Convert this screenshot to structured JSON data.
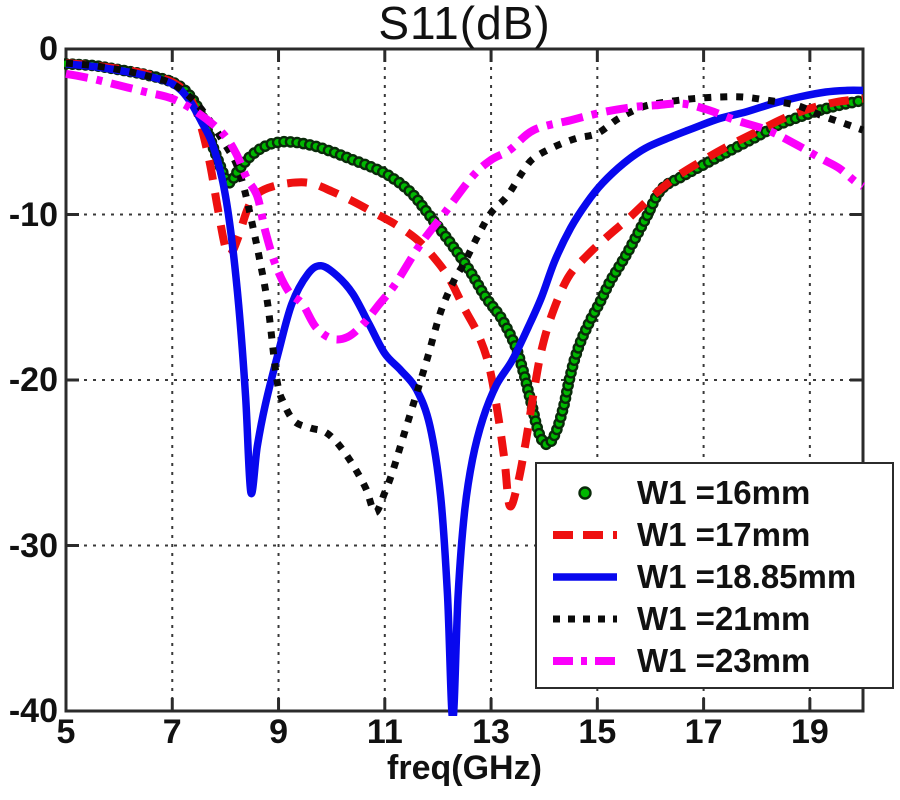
{
  "colors": {
    "background": "#ffffff",
    "frame": "#2b2b2b",
    "grid": "#3a3a3a",
    "text": "#111111"
  },
  "chart_data": {
    "type": "line",
    "title": "S11(dB)",
    "xlabel": "freq(GHz)",
    "ylabel": "",
    "xlim": [
      5,
      20
    ],
    "ylim": [
      -40,
      0
    ],
    "x_ticks": [
      5,
      7,
      9,
      11,
      13,
      15,
      17,
      19
    ],
    "x_tick_labels": [
      "5",
      "7",
      "9",
      "11",
      "13",
      "15",
      "17",
      "19"
    ],
    "y_ticks": [
      0,
      -10,
      -20,
      -30,
      -40
    ],
    "y_tick_labels": [
      "0",
      "-10",
      "-20",
      "-30",
      "-40"
    ],
    "grid": "dashed",
    "legend": {
      "position": "lower-right",
      "border": true
    },
    "series": [
      {
        "label": "W1 =16mm",
        "color": "#00b800",
        "marker_edge": "#0a2a0a",
        "style": "circle-markers",
        "points": [
          [
            5,
            -0.9
          ],
          [
            5.5,
            -1.0
          ],
          [
            6,
            -1.25
          ],
          [
            6.5,
            -1.55
          ],
          [
            7,
            -2.0
          ],
          [
            7.3,
            -2.7
          ],
          [
            7.55,
            -4.0
          ],
          [
            7.8,
            -6.2
          ],
          [
            8.0,
            -7.8
          ],
          [
            8.1,
            -8.05
          ],
          [
            8.25,
            -7.3
          ],
          [
            8.5,
            -6.4
          ],
          [
            8.8,
            -5.8
          ],
          [
            9.15,
            -5.6
          ],
          [
            9.6,
            -5.8
          ],
          [
            10,
            -6.2
          ],
          [
            10.4,
            -6.7
          ],
          [
            10.8,
            -7.2
          ],
          [
            11.1,
            -7.7
          ],
          [
            11.5,
            -8.7
          ],
          [
            11.9,
            -10.3
          ],
          [
            12.3,
            -12.0
          ],
          [
            12.6,
            -13.4
          ],
          [
            12.9,
            -15.0
          ],
          [
            13.2,
            -16.3
          ],
          [
            13.45,
            -17.9
          ],
          [
            13.6,
            -19.4
          ],
          [
            13.75,
            -21.3
          ],
          [
            13.9,
            -23.2
          ],
          [
            14.05,
            -23.9
          ],
          [
            14.2,
            -23.3
          ],
          [
            14.35,
            -21.8
          ],
          [
            14.5,
            -19.6
          ],
          [
            14.65,
            -18.0
          ],
          [
            14.85,
            -16.5
          ],
          [
            15.05,
            -15.3
          ],
          [
            15.25,
            -14.0
          ],
          [
            15.55,
            -12.4
          ],
          [
            15.9,
            -10.3
          ],
          [
            16.2,
            -8.5
          ],
          [
            16.6,
            -7.7
          ],
          [
            17,
            -7.0
          ],
          [
            17.4,
            -6.3
          ],
          [
            18,
            -5.3
          ],
          [
            18.4,
            -4.6
          ],
          [
            18.9,
            -4.0
          ],
          [
            19.3,
            -3.6
          ],
          [
            19.7,
            -3.3
          ],
          [
            20,
            -3.1
          ]
        ]
      },
      {
        "label": "W1 =17mm",
        "color": "#ee1010",
        "style": "dashed",
        "points": [
          [
            5,
            -0.85
          ],
          [
            5.5,
            -1.0
          ],
          [
            6,
            -1.2
          ],
          [
            6.5,
            -1.5
          ],
          [
            7,
            -2.0
          ],
          [
            7.3,
            -2.8
          ],
          [
            7.5,
            -4.2
          ],
          [
            7.7,
            -6.8
          ],
          [
            7.85,
            -9.5
          ],
          [
            8.0,
            -12.0
          ],
          [
            8.1,
            -12.4
          ],
          [
            8.25,
            -11.3
          ],
          [
            8.4,
            -9.8
          ],
          [
            8.55,
            -8.9
          ],
          [
            8.8,
            -8.4
          ],
          [
            9.2,
            -8.1
          ],
          [
            9.6,
            -8.1
          ],
          [
            10,
            -8.6
          ],
          [
            10.4,
            -9.2
          ],
          [
            10.8,
            -9.9
          ],
          [
            11.2,
            -10.6
          ],
          [
            11.6,
            -11.5
          ],
          [
            11.9,
            -12.5
          ],
          [
            12.2,
            -13.8
          ],
          [
            12.5,
            -15.7
          ],
          [
            12.75,
            -17.2
          ],
          [
            12.95,
            -19.0
          ],
          [
            13.1,
            -21.5
          ],
          [
            13.25,
            -24.8
          ],
          [
            13.35,
            -27.6
          ],
          [
            13.5,
            -26.3
          ],
          [
            13.65,
            -23.8
          ],
          [
            13.8,
            -20.8
          ],
          [
            13.95,
            -18.2
          ],
          [
            14.15,
            -16.0
          ],
          [
            14.45,
            -13.8
          ],
          [
            14.8,
            -12.5
          ],
          [
            15.2,
            -11.3
          ],
          [
            15.6,
            -10.2
          ],
          [
            16,
            -9.0
          ],
          [
            16.5,
            -7.7
          ],
          [
            17,
            -6.7
          ],
          [
            17.5,
            -5.8
          ],
          [
            18,
            -5.0
          ],
          [
            18.5,
            -4.2
          ],
          [
            19,
            -3.6
          ],
          [
            19.5,
            -3.2
          ],
          [
            20,
            -3.0
          ]
        ]
      },
      {
        "label": "W1 =18.85mm",
        "color": "#0808ee",
        "style": "solid",
        "points": [
          [
            5,
            -0.9
          ],
          [
            5.5,
            -1.05
          ],
          [
            6,
            -1.3
          ],
          [
            6.5,
            -1.6
          ],
          [
            7,
            -2.1
          ],
          [
            7.3,
            -3.0
          ],
          [
            7.55,
            -4.4
          ],
          [
            7.75,
            -5.7
          ],
          [
            7.95,
            -8.0
          ],
          [
            8.1,
            -11.0
          ],
          [
            8.25,
            -15.5
          ],
          [
            8.38,
            -21.0
          ],
          [
            8.48,
            -26.8
          ],
          [
            8.6,
            -24.0
          ],
          [
            8.75,
            -21.5
          ],
          [
            9.0,
            -18.3
          ],
          [
            9.25,
            -15.4
          ],
          [
            9.55,
            -13.6
          ],
          [
            9.8,
            -13.1
          ],
          [
            10.1,
            -13.7
          ],
          [
            10.4,
            -14.8
          ],
          [
            10.7,
            -16.6
          ],
          [
            11.0,
            -18.4
          ],
          [
            11.3,
            -19.4
          ],
          [
            11.6,
            -20.6
          ],
          [
            11.85,
            -22.8
          ],
          [
            12.05,
            -27.0
          ],
          [
            12.18,
            -33.0
          ],
          [
            12.28,
            -40.5
          ],
          [
            12.38,
            -33.0
          ],
          [
            12.5,
            -28.0
          ],
          [
            12.65,
            -24.8
          ],
          [
            12.85,
            -22.3
          ],
          [
            13.1,
            -20.3
          ],
          [
            13.4,
            -18.8
          ],
          [
            13.7,
            -16.8
          ],
          [
            13.95,
            -15.0
          ],
          [
            14.2,
            -12.8
          ],
          [
            14.5,
            -10.8
          ],
          [
            14.8,
            -9.3
          ],
          [
            15.1,
            -8.1
          ],
          [
            15.5,
            -6.9
          ],
          [
            15.9,
            -6.0
          ],
          [
            16.4,
            -5.3
          ],
          [
            16.8,
            -4.8
          ],
          [
            17.3,
            -4.2
          ],
          [
            17.8,
            -3.8
          ],
          [
            18.3,
            -3.3
          ],
          [
            18.8,
            -2.9
          ],
          [
            19.3,
            -2.6
          ],
          [
            19.7,
            -2.5
          ],
          [
            20,
            -2.5
          ]
        ]
      },
      {
        "label": "W1 =21mm",
        "color": "#0a0a0a",
        "style": "dotted",
        "points": [
          [
            5,
            -0.85
          ],
          [
            5.5,
            -1.0
          ],
          [
            6,
            -1.25
          ],
          [
            6.5,
            -1.6
          ],
          [
            7,
            -2.1
          ],
          [
            7.4,
            -3.1
          ],
          [
            7.7,
            -4.3
          ],
          [
            8.0,
            -5.8
          ],
          [
            8.2,
            -6.9
          ],
          [
            8.35,
            -8.4
          ],
          [
            8.5,
            -10.5
          ],
          [
            8.65,
            -12.8
          ],
          [
            8.8,
            -15.5
          ],
          [
            8.97,
            -20.0
          ],
          [
            9.1,
            -21.4
          ],
          [
            9.3,
            -22.5
          ],
          [
            9.6,
            -22.9
          ],
          [
            9.85,
            -23.1
          ],
          [
            10.05,
            -23.6
          ],
          [
            10.25,
            -24.4
          ],
          [
            10.45,
            -25.4
          ],
          [
            10.65,
            -26.6
          ],
          [
            10.82,
            -28.0
          ],
          [
            11.0,
            -26.8
          ],
          [
            11.15,
            -25.5
          ],
          [
            11.35,
            -23.4
          ],
          [
            11.6,
            -20.8
          ],
          [
            11.8,
            -18.7
          ],
          [
            12.05,
            -15.9
          ],
          [
            12.3,
            -14.0
          ],
          [
            12.5,
            -12.9
          ],
          [
            12.75,
            -11.3
          ],
          [
            13.0,
            -9.9
          ],
          [
            13.3,
            -8.9
          ],
          [
            13.6,
            -7.4
          ],
          [
            13.8,
            -6.6
          ],
          [
            14.2,
            -5.9
          ],
          [
            14.6,
            -5.4
          ],
          [
            15.0,
            -5.1
          ],
          [
            15.4,
            -4.2
          ],
          [
            15.85,
            -3.5
          ],
          [
            16.3,
            -3.2
          ],
          [
            16.8,
            -3.0
          ],
          [
            17.3,
            -2.9
          ],
          [
            17.75,
            -2.9
          ],
          [
            18.2,
            -3.1
          ],
          [
            18.75,
            -3.4
          ],
          [
            19.2,
            -4.0
          ],
          [
            19.65,
            -4.5
          ],
          [
            20,
            -4.9
          ]
        ]
      },
      {
        "label": "W1 =23mm",
        "color": "#fb00fb",
        "style": "dash-dot",
        "points": [
          [
            5,
            -1.5
          ],
          [
            5.5,
            -1.8
          ],
          [
            6,
            -2.2
          ],
          [
            6.5,
            -2.6
          ],
          [
            7,
            -3.0
          ],
          [
            7.5,
            -3.9
          ],
          [
            7.95,
            -5.1
          ],
          [
            8.2,
            -6.3
          ],
          [
            8.4,
            -7.8
          ],
          [
            8.6,
            -8.9
          ],
          [
            8.75,
            -11.0
          ],
          [
            8.95,
            -13.1
          ],
          [
            9.2,
            -14.7
          ],
          [
            9.45,
            -15.4
          ],
          [
            9.7,
            -16.8
          ],
          [
            10.0,
            -17.5
          ],
          [
            10.3,
            -17.4
          ],
          [
            10.6,
            -16.6
          ],
          [
            10.9,
            -15.4
          ],
          [
            11.2,
            -14.2
          ],
          [
            11.65,
            -11.9
          ],
          [
            12.15,
            -9.8
          ],
          [
            12.65,
            -7.7
          ],
          [
            13.0,
            -6.7
          ],
          [
            13.35,
            -6.1
          ],
          [
            13.8,
            -4.9
          ],
          [
            14.5,
            -4.3
          ],
          [
            15.0,
            -3.9
          ],
          [
            15.3,
            -3.7
          ],
          [
            15.7,
            -3.5
          ],
          [
            16.1,
            -3.4
          ],
          [
            16.6,
            -3.3
          ],
          [
            17.1,
            -3.7
          ],
          [
            17.6,
            -4.3
          ],
          [
            18.2,
            -4.9
          ],
          [
            18.7,
            -5.7
          ],
          [
            19.2,
            -6.6
          ],
          [
            19.55,
            -7.2
          ],
          [
            19.85,
            -8.0
          ],
          [
            20,
            -8.3
          ]
        ]
      }
    ]
  }
}
